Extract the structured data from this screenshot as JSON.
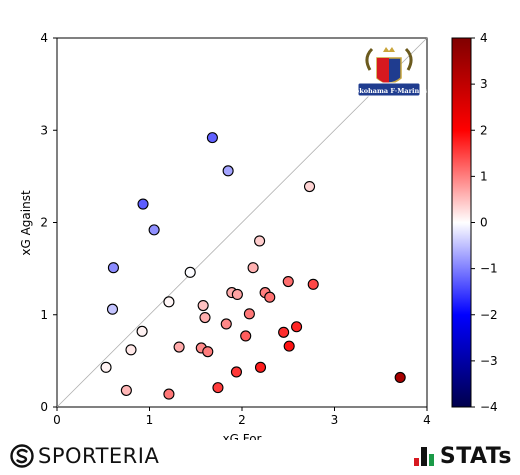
{
  "chart_data": {
    "type": "scatter",
    "xlabel": "xG For",
    "ylabel": "xG Against",
    "xlim": [
      0,
      4
    ],
    "ylim": [
      0,
      4
    ],
    "xticks": [
      "0",
      "1",
      "2",
      "3",
      "4"
    ],
    "yticks": [
      "0",
      "1",
      "2",
      "3",
      "4"
    ],
    "diagonal_line": true,
    "grid": false,
    "color_scale": {
      "type": "diverging",
      "min": -4,
      "max": 4,
      "low_color": "#00004c",
      "mid_color": "#ffffff",
      "high_color": "#800000",
      "ticks": [
        "4",
        "3",
        "2",
        "1",
        "0",
        "−1",
        "−2",
        "−3",
        "−4"
      ]
    },
    "points": [
      {
        "x": 1.68,
        "y": 2.92
      },
      {
        "x": 1.85,
        "y": 2.56
      },
      {
        "x": 0.93,
        "y": 2.2
      },
      {
        "x": 1.05,
        "y": 1.92
      },
      {
        "x": 0.61,
        "y": 1.51
      },
      {
        "x": 0.6,
        "y": 1.06
      },
      {
        "x": 1.44,
        "y": 1.46
      },
      {
        "x": 1.21,
        "y": 1.14
      },
      {
        "x": 0.92,
        "y": 0.82
      },
      {
        "x": 0.8,
        "y": 0.62
      },
      {
        "x": 0.53,
        "y": 0.43
      },
      {
        "x": 0.75,
        "y": 0.18
      },
      {
        "x": 1.21,
        "y": 0.14
      },
      {
        "x": 2.73,
        "y": 2.39
      },
      {
        "x": 2.19,
        "y": 1.8
      },
      {
        "x": 2.12,
        "y": 1.51
      },
      {
        "x": 2.5,
        "y": 1.36
      },
      {
        "x": 2.77,
        "y": 1.33
      },
      {
        "x": 1.89,
        "y": 1.24
      },
      {
        "x": 1.95,
        "y": 1.22
      },
      {
        "x": 2.25,
        "y": 1.24
      },
      {
        "x": 2.3,
        "y": 1.19
      },
      {
        "x": 1.58,
        "y": 1.1
      },
      {
        "x": 1.6,
        "y": 0.97
      },
      {
        "x": 2.08,
        "y": 1.01
      },
      {
        "x": 1.83,
        "y": 0.9
      },
      {
        "x": 2.45,
        "y": 0.81
      },
      {
        "x": 2.59,
        "y": 0.87
      },
      {
        "x": 2.04,
        "y": 0.77
      },
      {
        "x": 1.32,
        "y": 0.65
      },
      {
        "x": 1.56,
        "y": 0.64
      },
      {
        "x": 1.63,
        "y": 0.6
      },
      {
        "x": 2.51,
        "y": 0.66
      },
      {
        "x": 2.2,
        "y": 0.43
      },
      {
        "x": 1.94,
        "y": 0.38
      },
      {
        "x": 1.74,
        "y": 0.21
      },
      {
        "x": 3.71,
        "y": 0.32
      }
    ]
  },
  "logo_text": "Yokohama F·Marinos",
  "branding": {
    "left_text": "SPORTERIA",
    "right_text": "STATs"
  }
}
